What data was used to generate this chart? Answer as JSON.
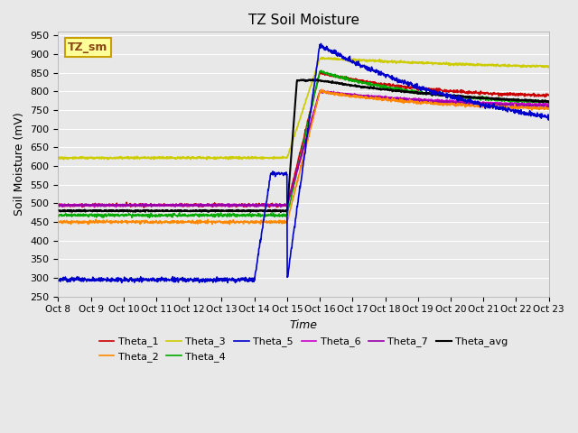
{
  "title": "TZ Soil Moisture",
  "xlabel": "Time",
  "ylabel": "Soil Moisture (mV)",
  "ylim": [
    250,
    960
  ],
  "yticks": [
    250,
    300,
    350,
    400,
    450,
    500,
    550,
    600,
    650,
    700,
    750,
    800,
    850,
    900,
    950
  ],
  "bg_color": "#e8e8e8",
  "plot_bg_color": "#e8e8e8",
  "annotation_text": "TZ_sm",
  "annotation_color": "#8B4513",
  "annotation_bg": "#ffff99",
  "annotation_border": "#c8a000",
  "series": {
    "Theta_1": {
      "color": "#cc0000",
      "lw": 1.2
    },
    "Theta_2": {
      "color": "#ff8800",
      "lw": 1.2
    },
    "Theta_3": {
      "color": "#cccc00",
      "lw": 1.2
    },
    "Theta_4": {
      "color": "#00aa00",
      "lw": 1.2
    },
    "Theta_5": {
      "color": "#0000cc",
      "lw": 1.2
    },
    "Theta_6": {
      "color": "#cc00cc",
      "lw": 1.2
    },
    "Theta_7": {
      "color": "#9900aa",
      "lw": 1.2
    },
    "Theta_avg": {
      "color": "#000000",
      "lw": 1.5
    }
  },
  "x_tick_labels": [
    "Oct 8",
    "Oct 9",
    "Oct 10",
    "Oct 11",
    "Oct 12",
    "Oct 13",
    "Oct 14",
    "Oct 15",
    "Oct 16",
    "Oct 17",
    "Oct 18",
    "Oct 19",
    "Oct 20",
    "Oct 21",
    "Oct 22",
    "Oct 23"
  ],
  "n_days": 16
}
